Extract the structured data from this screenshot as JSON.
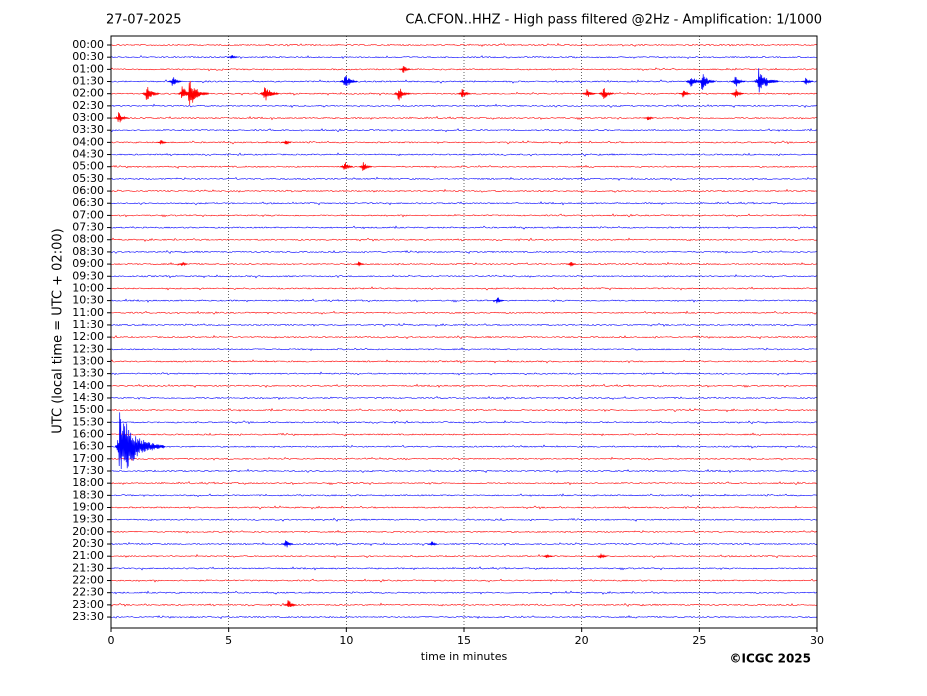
{
  "chart_data": {
    "type": "helicorder",
    "date": "27-07-2025",
    "title": "CA.CFON..HHZ - High pass filtered @2Hz - Amplification: 1/1000",
    "xlabel": "time in minutes",
    "ylabel": "UTC (local time = UTC + 02:00)",
    "copyright": "©ICGC 2025",
    "xlim": [
      0,
      30
    ],
    "xticks": [
      0,
      5,
      10,
      15,
      20,
      25,
      30
    ],
    "ylim": [
      -0.74,
      47.9
    ],
    "grid": true,
    "colors": [
      "#ff0000",
      "#0000ff"
    ],
    "categories": [
      "00:00",
      "00:30",
      "01:00",
      "01:30",
      "02:00",
      "02:30",
      "03:00",
      "03:30",
      "04:00",
      "04:30",
      "05:00",
      "05:30",
      "06:00",
      "06:30",
      "07:00",
      "07:30",
      "08:00",
      "08:30",
      "09:00",
      "09:30",
      "10:00",
      "10:30",
      "11:00",
      "11:30",
      "12:00",
      "12:30",
      "13:00",
      "13:30",
      "14:00",
      "14:30",
      "15:00",
      "15:30",
      "16:00",
      "16:30",
      "17:00",
      "17:30",
      "18:00",
      "18:30",
      "19:00",
      "19:30",
      "20:00",
      "20:30",
      "21:00",
      "21:30",
      "22:00",
      "22:30",
      "23:00",
      "23:30"
    ],
    "events": [
      {
        "row": 1,
        "x": 5.1,
        "amplitude": 0.2
      },
      {
        "row": 2,
        "x": 12.4,
        "amplitude": 0.3
      },
      {
        "row": 3,
        "x": 2.6,
        "amplitude": 0.4
      },
      {
        "row": 3,
        "x": 9.9,
        "amplitude": 0.7
      },
      {
        "row": 3,
        "x": 24.6,
        "amplitude": 0.6
      },
      {
        "row": 3,
        "x": 25.1,
        "amplitude": 0.7
      },
      {
        "row": 3,
        "x": 26.5,
        "amplitude": 0.5
      },
      {
        "row": 3,
        "x": 27.5,
        "amplitude": 1.2
      },
      {
        "row": 3,
        "x": 29.5,
        "amplitude": 0.3
      },
      {
        "row": 4,
        "x": 1.5,
        "amplitude": 0.7
      },
      {
        "row": 4,
        "x": 3.0,
        "amplitude": 0.6
      },
      {
        "row": 4,
        "x": 3.3,
        "amplitude": 1.2
      },
      {
        "row": 4,
        "x": 6.5,
        "amplitude": 0.8
      },
      {
        "row": 4,
        "x": 12.2,
        "amplitude": 0.6
      },
      {
        "row": 4,
        "x": 14.9,
        "amplitude": 0.4
      },
      {
        "row": 4,
        "x": 20.2,
        "amplitude": 0.4
      },
      {
        "row": 4,
        "x": 20.9,
        "amplitude": 0.5
      },
      {
        "row": 4,
        "x": 24.3,
        "amplitude": 0.3
      },
      {
        "row": 4,
        "x": 26.5,
        "amplitude": 0.4
      },
      {
        "row": 6,
        "x": 0.3,
        "amplitude": 0.5
      },
      {
        "row": 6,
        "x": 22.8,
        "amplitude": 0.2
      },
      {
        "row": 8,
        "x": 2.1,
        "amplitude": 0.2
      },
      {
        "row": 8,
        "x": 7.4,
        "amplitude": 0.2
      },
      {
        "row": 10,
        "x": 9.9,
        "amplitude": 0.4
      },
      {
        "row": 10,
        "x": 10.7,
        "amplitude": 0.4
      },
      {
        "row": 18,
        "x": 3.0,
        "amplitude": 0.2
      },
      {
        "row": 18,
        "x": 10.5,
        "amplitude": 0.2
      },
      {
        "row": 18,
        "x": 19.5,
        "amplitude": 0.2
      },
      {
        "row": 21,
        "x": 16.4,
        "amplitude": 0.25
      },
      {
        "row": 33,
        "x": 0.35,
        "amplitude": 3.0
      },
      {
        "row": 41,
        "x": 7.4,
        "amplitude": 0.35
      },
      {
        "row": 41,
        "x": 13.6,
        "amplitude": 0.2
      },
      {
        "row": 42,
        "x": 18.5,
        "amplitude": 0.2
      },
      {
        "row": 42,
        "x": 20.8,
        "amplitude": 0.25
      },
      {
        "row": 46,
        "x": 7.5,
        "amplitude": 0.4
      }
    ]
  }
}
